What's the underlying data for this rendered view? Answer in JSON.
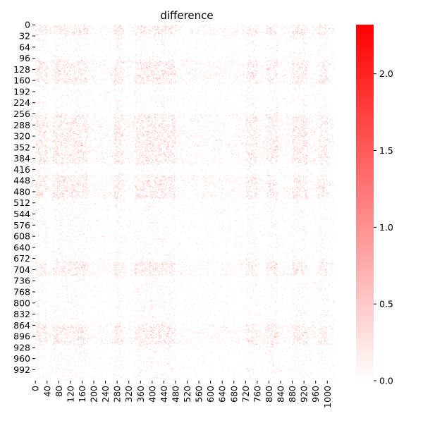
{
  "chart_data": {
    "type": "heatmap",
    "title": "difference",
    "rows": 1024,
    "cols": 1024,
    "x_tick_labels": [
      "0",
      "40",
      "80",
      "120",
      "160",
      "200",
      "240",
      "280",
      "320",
      "360",
      "400",
      "440",
      "480",
      "520",
      "560",
      "600",
      "640",
      "680",
      "720",
      "760",
      "800",
      "840",
      "880",
      "920",
      "960",
      "1000"
    ],
    "y_tick_labels": [
      "0",
      "32",
      "64",
      "96",
      "128",
      "160",
      "192",
      "224",
      "256",
      "288",
      "320",
      "352",
      "384",
      "416",
      "448",
      "480",
      "512",
      "544",
      "576",
      "608",
      "640",
      "672",
      "704",
      "736",
      "768",
      "800",
      "832",
      "864",
      "896",
      "928",
      "960",
      "992"
    ],
    "colorbar": {
      "min": 0.0,
      "max": 2.32,
      "tick_labels": [
        "0.0",
        "0.5",
        "1.0",
        "1.5",
        "2.0"
      ],
      "color_low": "#ffffff",
      "color_high": "#ff0000"
    },
    "typical_range": [
      0.0,
      0.5
    ],
    "description_bands": {
      "dense_rows": [
        [
          0,
          30
        ],
        [
          100,
          170
        ],
        [
          256,
          400
        ],
        [
          430,
          500
        ],
        [
          680,
          720
        ],
        [
          860,
          920
        ]
      ],
      "dense_cols": [
        [
          0,
          40
        ],
        [
          60,
          180
        ],
        [
          270,
          300
        ],
        [
          340,
          480
        ],
        [
          720,
          760
        ],
        [
          790,
          830
        ],
        [
          880,
          930
        ],
        [
          970,
          1000
        ]
      ]
    }
  }
}
